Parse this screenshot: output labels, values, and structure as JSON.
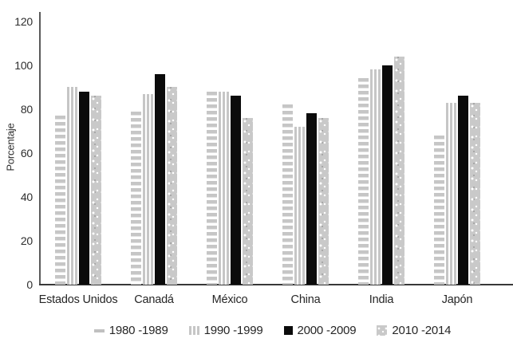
{
  "chart_data": {
    "type": "bar",
    "title": "",
    "xlabel": "",
    "ylabel": "Porcentaje",
    "categories": [
      "Estados Unidos",
      "Canadá",
      "México",
      "China",
      "India",
      "Japón"
    ],
    "series": [
      {
        "name": "1980 -1989",
        "pattern": "horizontal-stripes",
        "color": "#c6c6c6",
        "values": [
          77,
          79,
          88,
          82,
          94,
          68
        ]
      },
      {
        "name": "1990 -1999",
        "pattern": "vertical-stripes",
        "color": "#c6c6c6",
        "values": [
          90,
          87,
          88,
          72,
          98,
          83
        ]
      },
      {
        "name": "2000 -2009",
        "pattern": "solid",
        "color": "#0b0b0b",
        "values": [
          88,
          96,
          86,
          78,
          100,
          86
        ]
      },
      {
        "name": "2010 -2014",
        "pattern": "dots",
        "color": "#c9c9c9",
        "values": [
          86,
          90,
          76,
          76,
          104,
          83
        ]
      }
    ],
    "ylim": [
      0,
      120
    ],
    "yticks": [
      0,
      20,
      40,
      60,
      80,
      100,
      120
    ],
    "grid": false,
    "legend_position": "bottom",
    "axis_color": "#5a5a5a",
    "background": "#ffffff"
  }
}
